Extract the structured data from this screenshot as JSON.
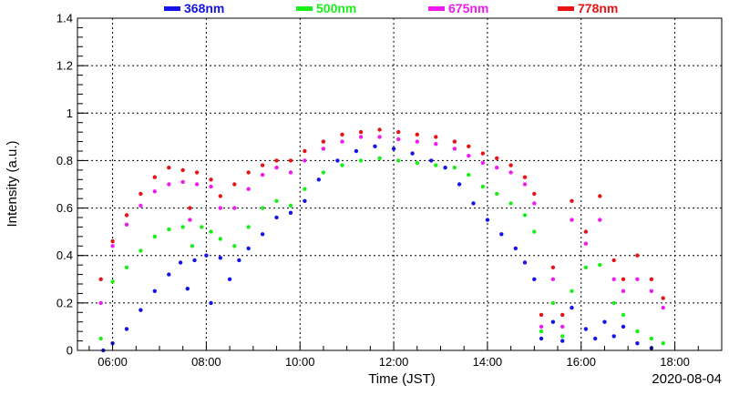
{
  "chart_data": {
    "type": "scatter",
    "title": "",
    "xlabel": "Time (JST)",
    "ylabel": "Intensity (a.u.)",
    "date_label": "2020-08-04",
    "xlim": [
      "05:15",
      "19:00"
    ],
    "ylim": [
      0,
      1.4
    ],
    "x_ticks": [
      "06:00",
      "08:00",
      "10:00",
      "12:00",
      "14:00",
      "16:00",
      "18:00"
    ],
    "y_ticks": [
      "0",
      "0.2",
      "0.4",
      "0.6",
      "0.8",
      "1",
      "1.2",
      "1.4"
    ],
    "grid": true,
    "legend_position": "top",
    "x_unit": "hour (decimal JST)",
    "series": [
      {
        "name": "368nm",
        "color": "#1414e6",
        "points": [
          [
            5.8,
            0.0
          ],
          [
            6.0,
            0.03
          ],
          [
            6.3,
            0.09
          ],
          [
            6.6,
            0.17
          ],
          [
            6.9,
            0.25
          ],
          [
            7.2,
            0.32
          ],
          [
            7.45,
            0.37
          ],
          [
            7.6,
            0.26
          ],
          [
            7.75,
            0.38
          ],
          [
            8.0,
            0.4
          ],
          [
            8.1,
            0.2
          ],
          [
            8.3,
            0.39
          ],
          [
            8.5,
            0.3
          ],
          [
            8.7,
            0.38
          ],
          [
            8.9,
            0.43
          ],
          [
            9.2,
            0.49
          ],
          [
            9.5,
            0.56
          ],
          [
            9.8,
            0.58
          ],
          [
            10.1,
            0.63
          ],
          [
            10.4,
            0.72
          ],
          [
            10.8,
            0.8
          ],
          [
            11.2,
            0.84
          ],
          [
            11.6,
            0.86
          ],
          [
            12.0,
            0.85
          ],
          [
            12.4,
            0.83
          ],
          [
            12.8,
            0.8
          ],
          [
            13.1,
            0.77
          ],
          [
            13.4,
            0.7
          ],
          [
            13.7,
            0.62
          ],
          [
            14.0,
            0.55
          ],
          [
            14.3,
            0.49
          ],
          [
            14.6,
            0.43
          ],
          [
            14.8,
            0.37
          ],
          [
            15.0,
            0.3
          ],
          [
            15.15,
            0.05
          ],
          [
            15.4,
            0.12
          ],
          [
            15.6,
            0.04
          ],
          [
            15.8,
            0.18
          ],
          [
            16.1,
            0.09
          ],
          [
            16.3,
            0.05
          ],
          [
            16.5,
            0.12
          ],
          [
            16.7,
            0.06
          ],
          [
            16.9,
            0.1
          ],
          [
            17.2,
            0.03
          ],
          [
            17.5,
            0.01
          ]
        ]
      },
      {
        "name": "500nm",
        "color": "#19f019",
        "points": [
          [
            5.75,
            0.05
          ],
          [
            6.0,
            0.29
          ],
          [
            6.3,
            0.35
          ],
          [
            6.6,
            0.42
          ],
          [
            6.9,
            0.48
          ],
          [
            7.2,
            0.51
          ],
          [
            7.5,
            0.52
          ],
          [
            7.7,
            0.44
          ],
          [
            7.9,
            0.52
          ],
          [
            8.1,
            0.5
          ],
          [
            8.3,
            0.47
          ],
          [
            8.6,
            0.44
          ],
          [
            8.9,
            0.52
          ],
          [
            9.2,
            0.6
          ],
          [
            9.5,
            0.63
          ],
          [
            9.8,
            0.61
          ],
          [
            10.1,
            0.68
          ],
          [
            10.5,
            0.75
          ],
          [
            10.9,
            0.78
          ],
          [
            11.3,
            0.8
          ],
          [
            11.7,
            0.81
          ],
          [
            12.1,
            0.8
          ],
          [
            12.5,
            0.79
          ],
          [
            12.9,
            0.78
          ],
          [
            13.3,
            0.77
          ],
          [
            13.6,
            0.74
          ],
          [
            13.9,
            0.69
          ],
          [
            14.2,
            0.66
          ],
          [
            14.5,
            0.62
          ],
          [
            14.8,
            0.57
          ],
          [
            15.0,
            0.5
          ],
          [
            15.15,
            0.08
          ],
          [
            15.4,
            0.2
          ],
          [
            15.6,
            0.06
          ],
          [
            15.8,
            0.25
          ],
          [
            16.1,
            0.35
          ],
          [
            16.4,
            0.36
          ],
          [
            16.7,
            0.2
          ],
          [
            16.9,
            0.15
          ],
          [
            17.2,
            0.08
          ],
          [
            17.5,
            0.05
          ],
          [
            17.75,
            0.03
          ]
        ]
      },
      {
        "name": "675nm",
        "color": "#f019f0",
        "points": [
          [
            5.75,
            0.2
          ],
          [
            6.0,
            0.44
          ],
          [
            6.3,
            0.53
          ],
          [
            6.6,
            0.61
          ],
          [
            6.9,
            0.67
          ],
          [
            7.2,
            0.7
          ],
          [
            7.5,
            0.71
          ],
          [
            7.65,
            0.55
          ],
          [
            7.8,
            0.7
          ],
          [
            8.1,
            0.69
          ],
          [
            8.3,
            0.6
          ],
          [
            8.6,
            0.6
          ],
          [
            8.9,
            0.68
          ],
          [
            9.2,
            0.74
          ],
          [
            9.5,
            0.77
          ],
          [
            9.8,
            0.75
          ],
          [
            10.1,
            0.8
          ],
          [
            10.5,
            0.85
          ],
          [
            10.9,
            0.88
          ],
          [
            11.3,
            0.9
          ],
          [
            11.7,
            0.9
          ],
          [
            12.1,
            0.89
          ],
          [
            12.5,
            0.88
          ],
          [
            12.9,
            0.87
          ],
          [
            13.3,
            0.85
          ],
          [
            13.6,
            0.82
          ],
          [
            13.9,
            0.79
          ],
          [
            14.2,
            0.77
          ],
          [
            14.5,
            0.75
          ],
          [
            14.8,
            0.7
          ],
          [
            15.0,
            0.62
          ],
          [
            15.15,
            0.1
          ],
          [
            15.4,
            0.3
          ],
          [
            15.6,
            0.1
          ],
          [
            15.8,
            0.55
          ],
          [
            16.1,
            0.45
          ],
          [
            16.4,
            0.55
          ],
          [
            16.7,
            0.3
          ],
          [
            16.9,
            0.25
          ],
          [
            17.2,
            0.3
          ],
          [
            17.5,
            0.25
          ],
          [
            17.75,
            0.18
          ]
        ]
      },
      {
        "name": "778nm",
        "color": "#e61414",
        "points": [
          [
            5.75,
            0.3
          ],
          [
            6.0,
            0.46
          ],
          [
            6.3,
            0.57
          ],
          [
            6.6,
            0.66
          ],
          [
            6.9,
            0.73
          ],
          [
            7.2,
            0.77
          ],
          [
            7.5,
            0.76
          ],
          [
            7.65,
            0.6
          ],
          [
            7.8,
            0.75
          ],
          [
            8.1,
            0.72
          ],
          [
            8.3,
            0.65
          ],
          [
            8.6,
            0.7
          ],
          [
            8.9,
            0.75
          ],
          [
            9.2,
            0.78
          ],
          [
            9.5,
            0.8
          ],
          [
            9.8,
            0.8
          ],
          [
            10.1,
            0.84
          ],
          [
            10.5,
            0.88
          ],
          [
            10.9,
            0.91
          ],
          [
            11.3,
            0.92
          ],
          [
            11.7,
            0.93
          ],
          [
            12.1,
            0.92
          ],
          [
            12.5,
            0.91
          ],
          [
            12.9,
            0.9
          ],
          [
            13.3,
            0.88
          ],
          [
            13.6,
            0.86
          ],
          [
            13.9,
            0.83
          ],
          [
            14.2,
            0.81
          ],
          [
            14.5,
            0.78
          ],
          [
            14.8,
            0.73
          ],
          [
            15.0,
            0.66
          ],
          [
            15.15,
            0.15
          ],
          [
            15.4,
            0.35
          ],
          [
            15.6,
            0.15
          ],
          [
            15.8,
            0.63
          ],
          [
            16.1,
            0.5
          ],
          [
            16.4,
            0.65
          ],
          [
            16.7,
            0.38
          ],
          [
            16.9,
            0.3
          ],
          [
            17.2,
            0.4
          ],
          [
            17.5,
            0.3
          ],
          [
            17.75,
            0.22
          ]
        ]
      }
    ]
  }
}
